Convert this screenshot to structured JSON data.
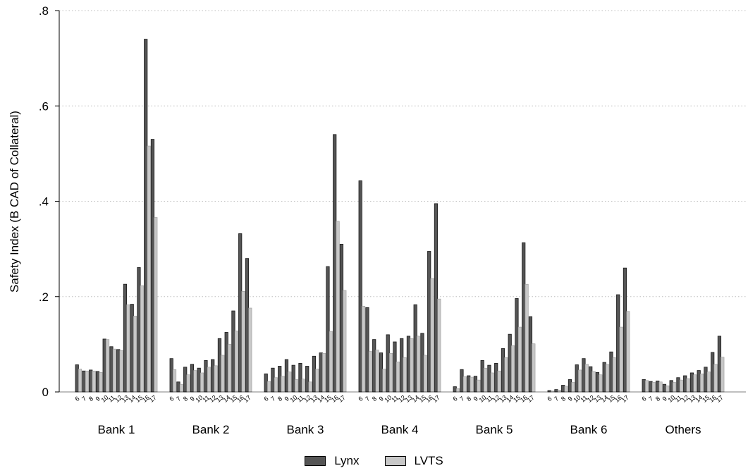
{
  "chart_data": {
    "type": "bar",
    "ylabel": "Safety Index (B CAD of Collateral)",
    "ylim": [
      0,
      0.8
    ],
    "yticks": [
      {
        "value": 0,
        "label": "0"
      },
      {
        "value": 0.2,
        "label": ".2"
      },
      {
        "value": 0.4,
        "label": ".4"
      },
      {
        "value": 0.6,
        "label": ".6"
      },
      {
        "value": 0.8,
        "label": ".8"
      }
    ],
    "grid": true,
    "legend_position": "bottom-center",
    "colors": {
      "Lynx": "#555555",
      "LVTS": "#c8c8c8"
    },
    "year_labels": [
      "6",
      "7",
      "8",
      "9",
      "10",
      "11",
      "12",
      "13",
      "14",
      "15",
      "16",
      "17"
    ],
    "groups": [
      {
        "name": "Bank 1",
        "lynx": [
          0.057,
          0.044,
          0.046,
          0.043,
          0.111,
          0.095,
          0.089,
          0.226,
          0.184,
          0.261,
          0.74,
          0.53
        ],
        "lvts": [
          0.048,
          0.044,
          0.044,
          0.041,
          0.11,
          0.09,
          0.087,
          0.183,
          0.159,
          0.223,
          0.516,
          0.366
        ]
      },
      {
        "name": "Bank 2",
        "lynx": [
          0.07,
          0.021,
          0.052,
          0.058,
          0.05,
          0.066,
          0.068,
          0.112,
          0.125,
          0.17,
          0.332,
          0.28
        ],
        "lvts": [
          0.047,
          0.016,
          0.036,
          0.045,
          0.04,
          0.052,
          0.055,
          0.077,
          0.1,
          0.128,
          0.211,
          0.176
        ]
      },
      {
        "name": "Bank 3",
        "lynx": [
          0.038,
          0.05,
          0.054,
          0.068,
          0.056,
          0.06,
          0.054,
          0.075,
          0.082,
          0.263,
          0.54,
          0.31
        ],
        "lvts": [
          0.022,
          0.03,
          0.033,
          0.042,
          0.026,
          0.027,
          0.021,
          0.048,
          0.081,
          0.127,
          0.358,
          0.213
        ]
      },
      {
        "name": "Bank 4",
        "lynx": [
          0.443,
          0.177,
          0.11,
          0.082,
          0.12,
          0.105,
          0.112,
          0.117,
          0.183,
          0.123,
          0.295,
          0.395
        ],
        "lvts": [
          0.18,
          0.085,
          0.088,
          0.048,
          0.081,
          0.063,
          0.072,
          0.112,
          0.117,
          0.077,
          0.238,
          0.195
        ]
      },
      {
        "name": "Bank 5",
        "lynx": [
          0.011,
          0.047,
          0.034,
          0.033,
          0.066,
          0.056,
          0.06,
          0.091,
          0.121,
          0.196,
          0.313,
          0.158
        ],
        "lvts": [
          0.007,
          0.032,
          0.031,
          0.025,
          0.05,
          0.04,
          0.044,
          0.072,
          0.097,
          0.136,
          0.226,
          0.101
        ]
      },
      {
        "name": "Bank 6",
        "lynx": [
          0.003,
          0.005,
          0.014,
          0.026,
          0.057,
          0.07,
          0.053,
          0.041,
          0.062,
          0.084,
          0.204,
          0.26
        ],
        "lvts": [
          0.002,
          0.004,
          0.012,
          0.02,
          0.046,
          0.058,
          0.043,
          0.036,
          0.058,
          0.072,
          0.136,
          0.169
        ]
      },
      {
        "name": "Others",
        "lynx": [
          0.026,
          0.022,
          0.023,
          0.016,
          0.024,
          0.03,
          0.034,
          0.04,
          0.045,
          0.052,
          0.083,
          0.117
        ],
        "lvts": [
          0.024,
          0.02,
          0.021,
          0.013,
          0.02,
          0.025,
          0.028,
          0.036,
          0.038,
          0.042,
          0.058,
          0.073
        ]
      }
    ],
    "series": [
      {
        "name": "Lynx"
      },
      {
        "name": "LVTS"
      }
    ]
  }
}
